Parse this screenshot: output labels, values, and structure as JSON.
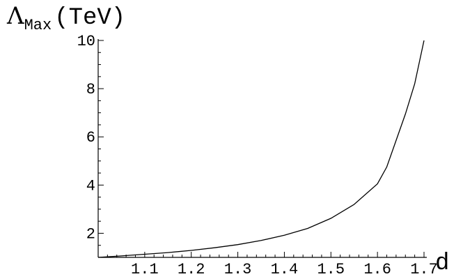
{
  "chart_data": {
    "type": "line",
    "title": "",
    "ylabel": {
      "symbol": "Λ",
      "subscript": "Max",
      "unit": "(TeV)"
    },
    "xlabel": "d",
    "xlim": [
      1.0,
      1.7
    ],
    "ylim": [
      1.0,
      10.0
    ],
    "x_ticks": [
      1.1,
      1.2,
      1.3,
      1.4,
      1.5,
      1.6,
      1.7
    ],
    "x_tick_labels": [
      "1.1",
      "1.2",
      "1.3",
      "1.4",
      "1.5",
      "1.6",
      "1.7"
    ],
    "y_ticks": [
      2,
      4,
      6,
      8,
      10
    ],
    "y_tick_labels": [
      "2",
      "4",
      "6",
      "8",
      "10"
    ],
    "grid": false,
    "series": [
      {
        "x": [
          1.0,
          1.05,
          1.1,
          1.15,
          1.2,
          1.25,
          1.3,
          1.35,
          1.4,
          1.45,
          1.5,
          1.55,
          1.6,
          1.62,
          1.64,
          1.66,
          1.68,
          1.7
        ],
        "y": [
          1.0,
          1.06,
          1.13,
          1.2,
          1.29,
          1.4,
          1.53,
          1.7,
          1.92,
          2.2,
          2.62,
          3.2,
          4.05,
          4.75,
          5.85,
          6.95,
          8.2,
          10.0
        ]
      }
    ]
  }
}
